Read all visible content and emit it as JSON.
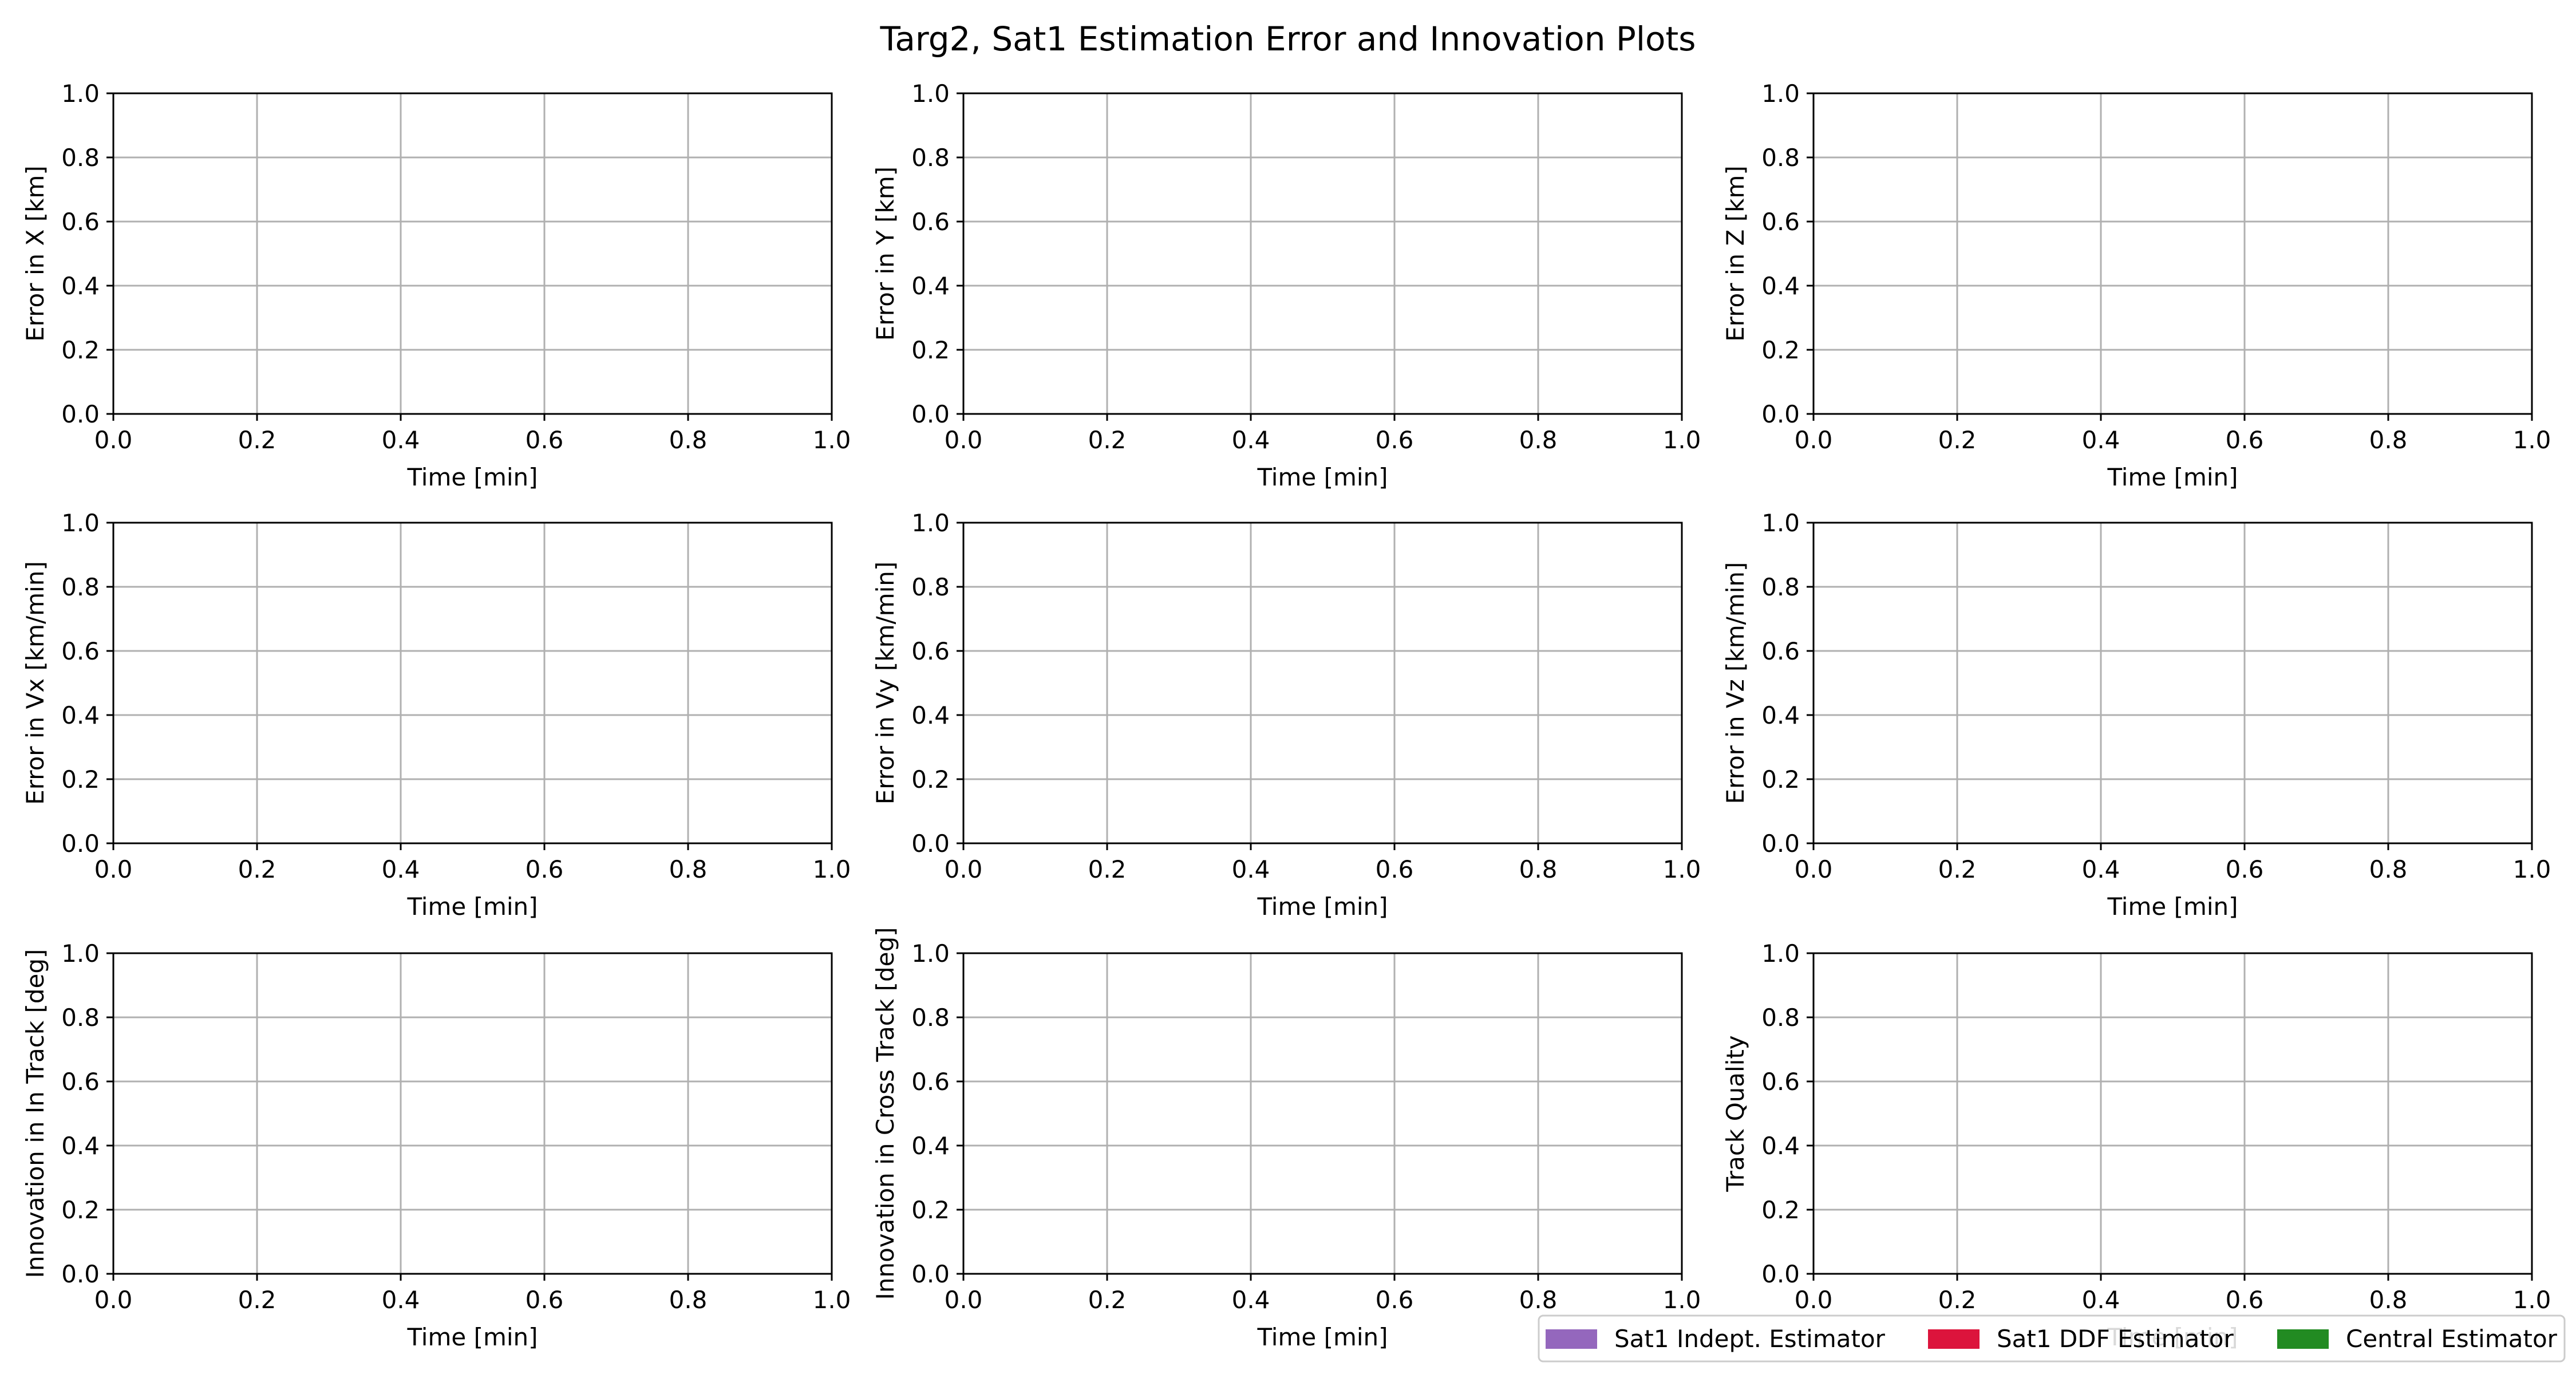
{
  "figure": {
    "title": "Targ2, Sat1 Estimation Error and Innovation Plots"
  },
  "chart_data": [
    {
      "type": "line",
      "xlabel": "Time [min]",
      "ylabel": "Error in X [km]",
      "xlim": [
        0,
        1
      ],
      "ylim": [
        0,
        1
      ],
      "grid": true,
      "xticks": [
        "0.0",
        "0.2",
        "0.4",
        "0.6",
        "0.8",
        "1.0"
      ],
      "yticks": [
        "0.0",
        "0.2",
        "0.4",
        "0.6",
        "0.8",
        "1.0"
      ],
      "series": []
    },
    {
      "type": "line",
      "xlabel": "Time [min]",
      "ylabel": "Error in Y [km]",
      "xlim": [
        0,
        1
      ],
      "ylim": [
        0,
        1
      ],
      "grid": true,
      "xticks": [
        "0.0",
        "0.2",
        "0.4",
        "0.6",
        "0.8",
        "1.0"
      ],
      "yticks": [
        "0.0",
        "0.2",
        "0.4",
        "0.6",
        "0.8",
        "1.0"
      ],
      "series": []
    },
    {
      "type": "line",
      "xlabel": "Time [min]",
      "ylabel": "Error in Z [km]",
      "xlim": [
        0,
        1
      ],
      "ylim": [
        0,
        1
      ],
      "grid": true,
      "xticks": [
        "0.0",
        "0.2",
        "0.4",
        "0.6",
        "0.8",
        "1.0"
      ],
      "yticks": [
        "0.0",
        "0.2",
        "0.4",
        "0.6",
        "0.8",
        "1.0"
      ],
      "series": []
    },
    {
      "type": "line",
      "xlabel": "Time [min]",
      "ylabel": "Error in Vx [km/min]",
      "xlim": [
        0,
        1
      ],
      "ylim": [
        0,
        1
      ],
      "grid": true,
      "xticks": [
        "0.0",
        "0.2",
        "0.4",
        "0.6",
        "0.8",
        "1.0"
      ],
      "yticks": [
        "0.0",
        "0.2",
        "0.4",
        "0.6",
        "0.8",
        "1.0"
      ],
      "series": []
    },
    {
      "type": "line",
      "xlabel": "Time [min]",
      "ylabel": "Error in Vy [km/min]",
      "xlim": [
        0,
        1
      ],
      "ylim": [
        0,
        1
      ],
      "grid": true,
      "xticks": [
        "0.0",
        "0.2",
        "0.4",
        "0.6",
        "0.8",
        "1.0"
      ],
      "yticks": [
        "0.0",
        "0.2",
        "0.4",
        "0.6",
        "0.8",
        "1.0"
      ],
      "series": []
    },
    {
      "type": "line",
      "xlabel": "Time [min]",
      "ylabel": "Error in Vz [km/min]",
      "xlim": [
        0,
        1
      ],
      "ylim": [
        0,
        1
      ],
      "grid": true,
      "xticks": [
        "0.0",
        "0.2",
        "0.4",
        "0.6",
        "0.8",
        "1.0"
      ],
      "yticks": [
        "0.0",
        "0.2",
        "0.4",
        "0.6",
        "0.8",
        "1.0"
      ],
      "series": []
    },
    {
      "type": "line",
      "xlabel": "Time [min]",
      "ylabel": "Innovation in In Track [deg]",
      "xlim": [
        0,
        1
      ],
      "ylim": [
        0,
        1
      ],
      "grid": true,
      "xticks": [
        "0.0",
        "0.2",
        "0.4",
        "0.6",
        "0.8",
        "1.0"
      ],
      "yticks": [
        "0.0",
        "0.2",
        "0.4",
        "0.6",
        "0.8",
        "1.0"
      ],
      "series": []
    },
    {
      "type": "line",
      "xlabel": "Time [min]",
      "ylabel": "Innovation in Cross Track [deg]",
      "xlim": [
        0,
        1
      ],
      "ylim": [
        0,
        1
      ],
      "grid": true,
      "xticks": [
        "0.0",
        "0.2",
        "0.4",
        "0.6",
        "0.8",
        "1.0"
      ],
      "yticks": [
        "0.0",
        "0.2",
        "0.4",
        "0.6",
        "0.8",
        "1.0"
      ],
      "series": []
    },
    {
      "type": "line",
      "xlabel": "Time [min]",
      "ylabel": "Track Quality",
      "xlim": [
        0,
        1
      ],
      "ylim": [
        0,
        1
      ],
      "grid": true,
      "xticks": [
        "0.0",
        "0.2",
        "0.4",
        "0.6",
        "0.8",
        "1.0"
      ],
      "yticks": [
        "0.0",
        "0.2",
        "0.4",
        "0.6",
        "0.8",
        "1.0"
      ],
      "series": []
    }
  ],
  "legend": {
    "placement": "bottom-right",
    "entries": [
      {
        "label": "Sat1 Indept. Estimator",
        "color": "#9467bd"
      },
      {
        "label": "Sat1 DDF Estimator",
        "color": "#dc143c"
      },
      {
        "label": "Central Estimator",
        "color": "#228b22"
      }
    ]
  }
}
